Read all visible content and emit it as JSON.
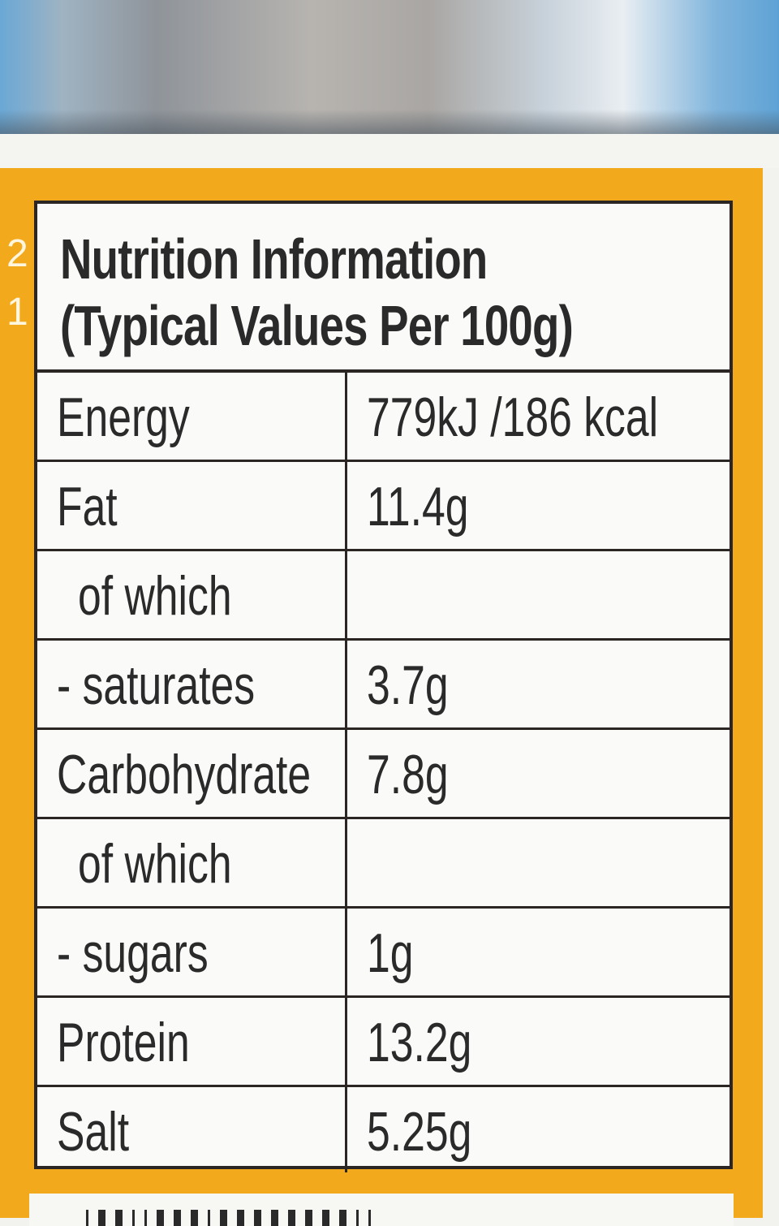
{
  "side_numbers": [
    "2",
    "1"
  ],
  "title": "Nutrition Information",
  "subtitle": "(Typical Values Per 100g)",
  "rows": [
    {
      "label": "Energy",
      "value": "779kJ /186 kcal",
      "indent": false
    },
    {
      "label": "Fat",
      "value": "11.4g",
      "indent": false
    },
    {
      "label": "of which",
      "value": "",
      "indent": true
    },
    {
      "label": "- saturates",
      "value": "3.7g",
      "indent": false
    },
    {
      "label": "Carbohydrate",
      "value": "7.8g",
      "indent": false
    },
    {
      "label": "of which",
      "value": "",
      "indent": true
    },
    {
      "label": "- sugars",
      "value": "1g",
      "indent": false
    },
    {
      "label": "Protein",
      "value": "13.2g",
      "indent": false
    },
    {
      "label": "Salt",
      "value": "5.25g",
      "indent": false
    }
  ],
  "colors": {
    "label_background": "#f2a91c",
    "table_border": "#2b2624",
    "text": "#2a2a2a"
  }
}
